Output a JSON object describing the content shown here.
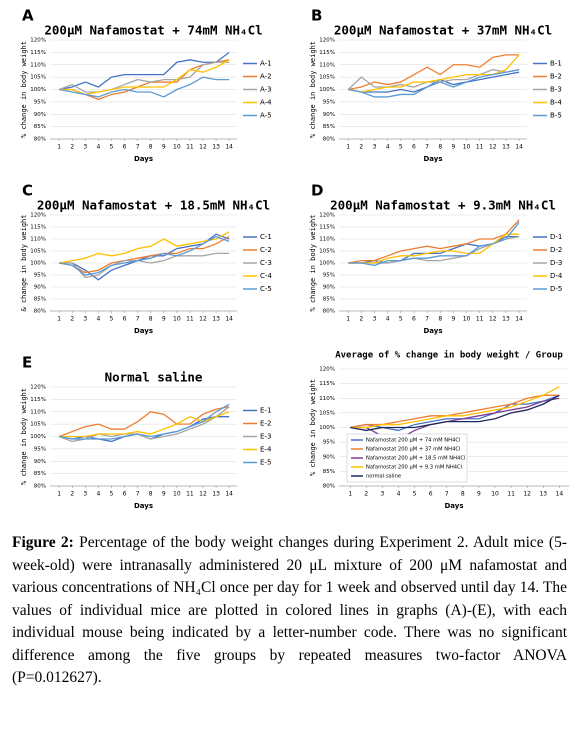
{
  "chart_data": [
    {
      "type": "line",
      "panel_label": "A",
      "title": "200μM Nafamostat + 74mM NH₄Cl",
      "xlabel": "Days",
      "ylabel": "% change in body weight",
      "legend": "right",
      "x": [
        1,
        2,
        3,
        4,
        5,
        6,
        7,
        8,
        9,
        10,
        11,
        12,
        13,
        14
      ],
      "xlim": [
        0.3,
        14.6
      ],
      "xticks": [
        1,
        2,
        3,
        4,
        5,
        6,
        7,
        8,
        9,
        10,
        11,
        12,
        13,
        14
      ],
      "ylim": [
        80,
        120
      ],
      "yticks": [
        {
          "value": 80,
          "label": "80%"
        },
        {
          "value": 85,
          "label": "85%"
        },
        {
          "value": 90,
          "label": "90%"
        },
        {
          "value": 95,
          "label": "95%"
        },
        {
          "value": 100,
          "label": "100%"
        },
        {
          "value": 105,
          "label": "105%"
        },
        {
          "value": 110,
          "label": "110%"
        },
        {
          "value": 115,
          "label": "115%"
        },
        {
          "value": 120,
          "label": "120%"
        }
      ],
      "series": [
        {
          "name": "A-1",
          "color": "#4472c4",
          "values": [
            100,
            101,
            103,
            101,
            105,
            106,
            106,
            106,
            106,
            111,
            112,
            111,
            111,
            115
          ]
        },
        {
          "name": "A-2",
          "color": "#ed7d31",
          "values": [
            100,
            100,
            98,
            96,
            98,
            99,
            101,
            103,
            103,
            103,
            108,
            110,
            111,
            112
          ]
        },
        {
          "name": "A-3",
          "color": "#a5a5a5",
          "values": [
            100,
            102,
            99,
            99,
            100,
            102,
            104,
            103,
            104,
            104,
            105,
            110,
            111,
            111
          ]
        },
        {
          "name": "A-4",
          "color": "#ffc000",
          "values": [
            100,
            100,
            98,
            99,
            100,
            101,
            101,
            101,
            101,
            104,
            108,
            107,
            109,
            112
          ]
        },
        {
          "name": "A-5",
          "color": "#5b9bd5",
          "values": [
            100,
            99,
            98,
            97,
            99,
            100,
            99,
            99,
            97,
            100,
            102,
            105,
            104,
            104
          ]
        }
      ]
    },
    {
      "type": "line",
      "panel_label": "B",
      "title": "200μM Nafamostat + 37mM NH₄Cl",
      "xlabel": "Days",
      "ylabel": "% change in body weight",
      "legend": "right",
      "x": [
        1,
        2,
        3,
        4,
        5,
        6,
        7,
        8,
        9,
        10,
        11,
        12,
        13,
        14
      ],
      "xlim": [
        0.3,
        14.6
      ],
      "xticks": [
        1,
        2,
        3,
        4,
        5,
        6,
        7,
        8,
        9,
        10,
        11,
        12,
        13,
        14
      ],
      "ylim": [
        80,
        120
      ],
      "yticks": [
        {
          "value": 80,
          "label": "80%"
        },
        {
          "value": 85,
          "label": "85%"
        },
        {
          "value": 90,
          "label": "90%"
        },
        {
          "value": 95,
          "label": "95%"
        },
        {
          "value": 100,
          "label": "100%"
        },
        {
          "value": 105,
          "label": "105%"
        },
        {
          "value": 110,
          "label": "110%"
        },
        {
          "value": 115,
          "label": "115%"
        },
        {
          "value": 120,
          "label": "120%"
        }
      ],
      "series": [
        {
          "name": "B-1",
          "color": "#4472c4",
          "values": [
            100,
            99,
            99,
            99,
            100,
            99,
            101,
            104,
            102,
            103,
            104,
            105,
            106,
            107
          ]
        },
        {
          "name": "B-2",
          "color": "#ed7d31",
          "values": [
            100,
            101,
            103,
            102,
            103,
            106,
            109,
            106,
            110,
            110,
            109,
            113,
            114,
            114
          ]
        },
        {
          "name": "B-3",
          "color": "#a5a5a5",
          "values": [
            100,
            105,
            101,
            101,
            102,
            101,
            103,
            103,
            104,
            104,
            106,
            108,
            107,
            108
          ]
        },
        {
          "name": "B-4",
          "color": "#ffc000",
          "values": [
            100,
            99,
            100,
            101,
            101,
            103,
            103,
            104,
            105,
            106,
            106,
            106,
            108,
            114
          ]
        },
        {
          "name": "B-5",
          "color": "#5b9bd5",
          "values": [
            100,
            99,
            97,
            97,
            98,
            98,
            101,
            103,
            101,
            103,
            105,
            106,
            107,
            108
          ]
        }
      ]
    },
    {
      "type": "line",
      "panel_label": "C",
      "title": "200μM Nafamostat + 18.5mM NH₄Cl",
      "xlabel": "Days",
      "ylabel": "& change in body weight",
      "legend": "right",
      "x": [
        1,
        2,
        3,
        4,
        5,
        6,
        7,
        8,
        9,
        10,
        11,
        12,
        13,
        14
      ],
      "xlim": [
        0.3,
        14.6
      ],
      "xticks": [
        1,
        2,
        3,
        4,
        5,
        6,
        7,
        8,
        9,
        10,
        11,
        12,
        13,
        14
      ],
      "ylim": [
        80,
        120
      ],
      "yticks": [
        {
          "value": 80,
          "label": "80%"
        },
        {
          "value": 85,
          "label": "85%"
        },
        {
          "value": 90,
          "label": "90%"
        },
        {
          "value": 95,
          "label": "95%"
        },
        {
          "value": 100,
          "label": "100%"
        },
        {
          "value": 105,
          "label": "105%"
        },
        {
          "value": 110,
          "label": "110%"
        },
        {
          "value": 115,
          "label": "115%"
        },
        {
          "value": 120,
          "label": "120%"
        }
      ],
      "series": [
        {
          "name": "C-1",
          "color": "#4472c4",
          "values": [
            100,
            100,
            97,
            93,
            97,
            99,
            101,
            103,
            103,
            106,
            107,
            108,
            112,
            110
          ]
        },
        {
          "name": "C-2",
          "color": "#ed7d31",
          "values": [
            100,
            99,
            96,
            97,
            100,
            101,
            102,
            103,
            104,
            104,
            106,
            106,
            108,
            111
          ]
        },
        {
          "name": "C-3",
          "color": "#a5a5a5",
          "values": [
            100,
            100,
            94,
            95,
            99,
            101,
            101,
            100,
            101,
            103,
            103,
            103,
            104,
            104
          ]
        },
        {
          "name": "C-4",
          "color": "#ffc000",
          "values": [
            100,
            101,
            102,
            104,
            103,
            104,
            106,
            107,
            110,
            107,
            108,
            109,
            110,
            113
          ]
        },
        {
          "name": "C-5",
          "color": "#5b9bd5",
          "values": [
            100,
            99,
            95,
            96,
            99,
            100,
            101,
            102,
            104,
            103,
            105,
            108,
            111,
            109
          ]
        }
      ]
    },
    {
      "type": "line",
      "panel_label": "D",
      "title": "200μM Nafamostat + 9.3mM NH₄Cl",
      "xlabel": "Days",
      "ylabel": "% change in body weight",
      "legend": "right",
      "x": [
        1,
        2,
        3,
        4,
        5,
        6,
        7,
        8,
        9,
        10,
        11,
        12,
        13,
        14
      ],
      "xlim": [
        0.3,
        14.6
      ],
      "xticks": [
        1,
        2,
        3,
        4,
        5,
        6,
        7,
        8,
        9,
        10,
        11,
        12,
        13,
        14
      ],
      "ylim": [
        80,
        120
      ],
      "yticks": [
        {
          "value": 80,
          "label": "80%"
        },
        {
          "value": 85,
          "label": "85%"
        },
        {
          "value": 90,
          "label": "90%"
        },
        {
          "value": 95,
          "label": "95%"
        },
        {
          "value": 100,
          "label": "100%"
        },
        {
          "value": 105,
          "label": "105%"
        },
        {
          "value": 110,
          "label": "110%"
        },
        {
          "value": 115,
          "label": "115%"
        },
        {
          "value": 120,
          "label": "120%"
        }
      ],
      "series": [
        {
          "name": "D-1",
          "color": "#4472c4",
          "values": [
            100,
            100,
            101,
            100,
            101,
            104,
            104,
            104,
            106,
            108,
            107,
            108,
            111,
            111
          ]
        },
        {
          "name": "D-2",
          "color": "#ed7d31",
          "values": [
            100,
            101,
            101,
            103,
            105,
            106,
            107,
            106,
            107,
            108,
            110,
            110,
            112,
            118
          ]
        },
        {
          "name": "D-3",
          "color": "#a5a5a5",
          "values": [
            100,
            100,
            100,
            100,
            101,
            102,
            101,
            101,
            102,
            103,
            106,
            108,
            110,
            111
          ]
        },
        {
          "name": "D-4",
          "color": "#ffc000",
          "values": [
            100,
            100,
            100,
            102,
            103,
            103,
            104,
            105,
            105,
            104,
            104,
            108,
            112,
            112
          ]
        },
        {
          "name": "D-5",
          "color": "#5b9bd5",
          "values": [
            100,
            100,
            99,
            101,
            101,
            102,
            102,
            103,
            103,
            103,
            107,
            108,
            110,
            117
          ]
        }
      ]
    },
    {
      "type": "line",
      "panel_label": "E",
      "title": "Normal saline",
      "xlabel": "Days",
      "ylabel": "% change in body weight",
      "legend": "right",
      "x": [
        1,
        2,
        3,
        4,
        5,
        6,
        7,
        8,
        9,
        10,
        11,
        12,
        13,
        14
      ],
      "xlim": [
        0.3,
        14.6
      ],
      "xticks": [
        1,
        2,
        3,
        4,
        5,
        6,
        7,
        8,
        9,
        10,
        11,
        12,
        13,
        14
      ],
      "ylim": [
        80,
        120
      ],
      "yticks": [
        {
          "value": 80,
          "label": "80%"
        },
        {
          "value": 85,
          "label": "85%"
        },
        {
          "value": 90,
          "label": "90%"
        },
        {
          "value": 95,
          "label": "95%"
        },
        {
          "value": 100,
          "label": "100%"
        },
        {
          "value": 105,
          "label": "105%"
        },
        {
          "value": 110,
          "label": "110%"
        },
        {
          "value": 115,
          "label": "115%"
        },
        {
          "value": 120,
          "label": "120%"
        }
      ],
      "series": [
        {
          "name": "E-1",
          "color": "#4472c4",
          "values": [
            100,
            99,
            100,
            99,
            98,
            100,
            101,
            99,
            101,
            102,
            104,
            107,
            108,
            108
          ]
        },
        {
          "name": "E-2",
          "color": "#ed7d31",
          "values": [
            100,
            102,
            104,
            105,
            103,
            103,
            106,
            110,
            109,
            105,
            105,
            109,
            111,
            112
          ]
        },
        {
          "name": "E-3",
          "color": "#a5a5a5",
          "values": [
            100,
            98,
            99,
            101,
            100,
            101,
            101,
            99,
            100,
            101,
            103,
            105,
            108,
            112
          ]
        },
        {
          "name": "E-4",
          "color": "#ffc000",
          "values": [
            100,
            100,
            100,
            101,
            101,
            101,
            102,
            101,
            103,
            105,
            108,
            106,
            108,
            110
          ]
        },
        {
          "name": "E-5",
          "color": "#5b9bd5",
          "values": [
            100,
            99,
            99,
            99,
            99,
            100,
            101,
            100,
            101,
            102,
            104,
            106,
            110,
            113
          ]
        }
      ]
    },
    {
      "type": "line",
      "title": "Average of % change in body weight / Group",
      "xlabel": "Days",
      "ylabel": "% change in body weight",
      "legend": "lower center",
      "x": [
        1,
        2,
        3,
        4,
        5,
        6,
        7,
        8,
        9,
        10,
        11,
        12,
        13,
        14
      ],
      "xlim": [
        0.3,
        14.6
      ],
      "xticks": [
        1,
        2,
        3,
        4,
        5,
        6,
        7,
        8,
        9,
        10,
        11,
        12,
        13,
        14
      ],
      "ylim": [
        80,
        120
      ],
      "yticks": [
        {
          "value": 80,
          "label": "80%"
        },
        {
          "value": 85,
          "label": "85%"
        },
        {
          "value": 90,
          "label": "90%"
        },
        {
          "value": 95,
          "label": "95%"
        },
        {
          "value": 100,
          "label": "100%"
        },
        {
          "value": 105,
          "label": "105%"
        },
        {
          "value": 110,
          "label": "110%"
        },
        {
          "value": 115,
          "label": "115%"
        },
        {
          "value": 120,
          "label": "120%"
        }
      ],
      "series": [
        {
          "name": "Nafamostat 200 μM + 74 mM NH4Cl",
          "color": "#4472c4",
          "values": [
            100,
            101,
            100,
            99,
            101,
            102,
            103,
            103,
            103,
            105,
            108,
            108,
            109,
            111
          ]
        },
        {
          "name": "Nafamostat 200 μM + 37 mM NH4Cl",
          "color": "#ed7d31",
          "values": [
            100,
            101,
            101,
            102,
            103,
            104,
            104,
            105,
            106,
            107,
            108,
            110,
            111,
            111
          ]
        },
        {
          "name": "Nafamostat 200 μM + 18.5 mM NH4Cl",
          "color": "#7f3f98",
          "values": [
            100,
            100,
            97,
            96,
            99,
            101,
            102,
            103,
            104,
            105,
            106,
            107,
            109,
            110
          ]
        },
        {
          "name": "Nafamostat 200 μM + 9.3 mM NH4Cl",
          "color": "#ffc000",
          "values": [
            100,
            100,
            101,
            101,
            102,
            103,
            104,
            104,
            105,
            106,
            107,
            109,
            111,
            114
          ]
        },
        {
          "name": "normal saline",
          "color": "#1f2a5c",
          "values": [
            100,
            99,
            100,
            100,
            100,
            101,
            102,
            102,
            102,
            103,
            105,
            106,
            108,
            111
          ]
        }
      ]
    }
  ],
  "caption": {
    "label": "Figure 2:",
    "text": "Percentage of the body weight changes during Experiment 2. Adult mice (5-week-old) were intranasally administered 20 μL mixture of 200 μM nafamostat and various concentrations of NH₄Cl once per day for 1 week and observed until day 14. The values of individual mice are plotted in colored lines in graphs (A)-(E), with each individual mouse being indicated by a letter-number code. There was no significant difference among the five groups by repeated measures two-factor ANOVA (P=0.012627)."
  }
}
